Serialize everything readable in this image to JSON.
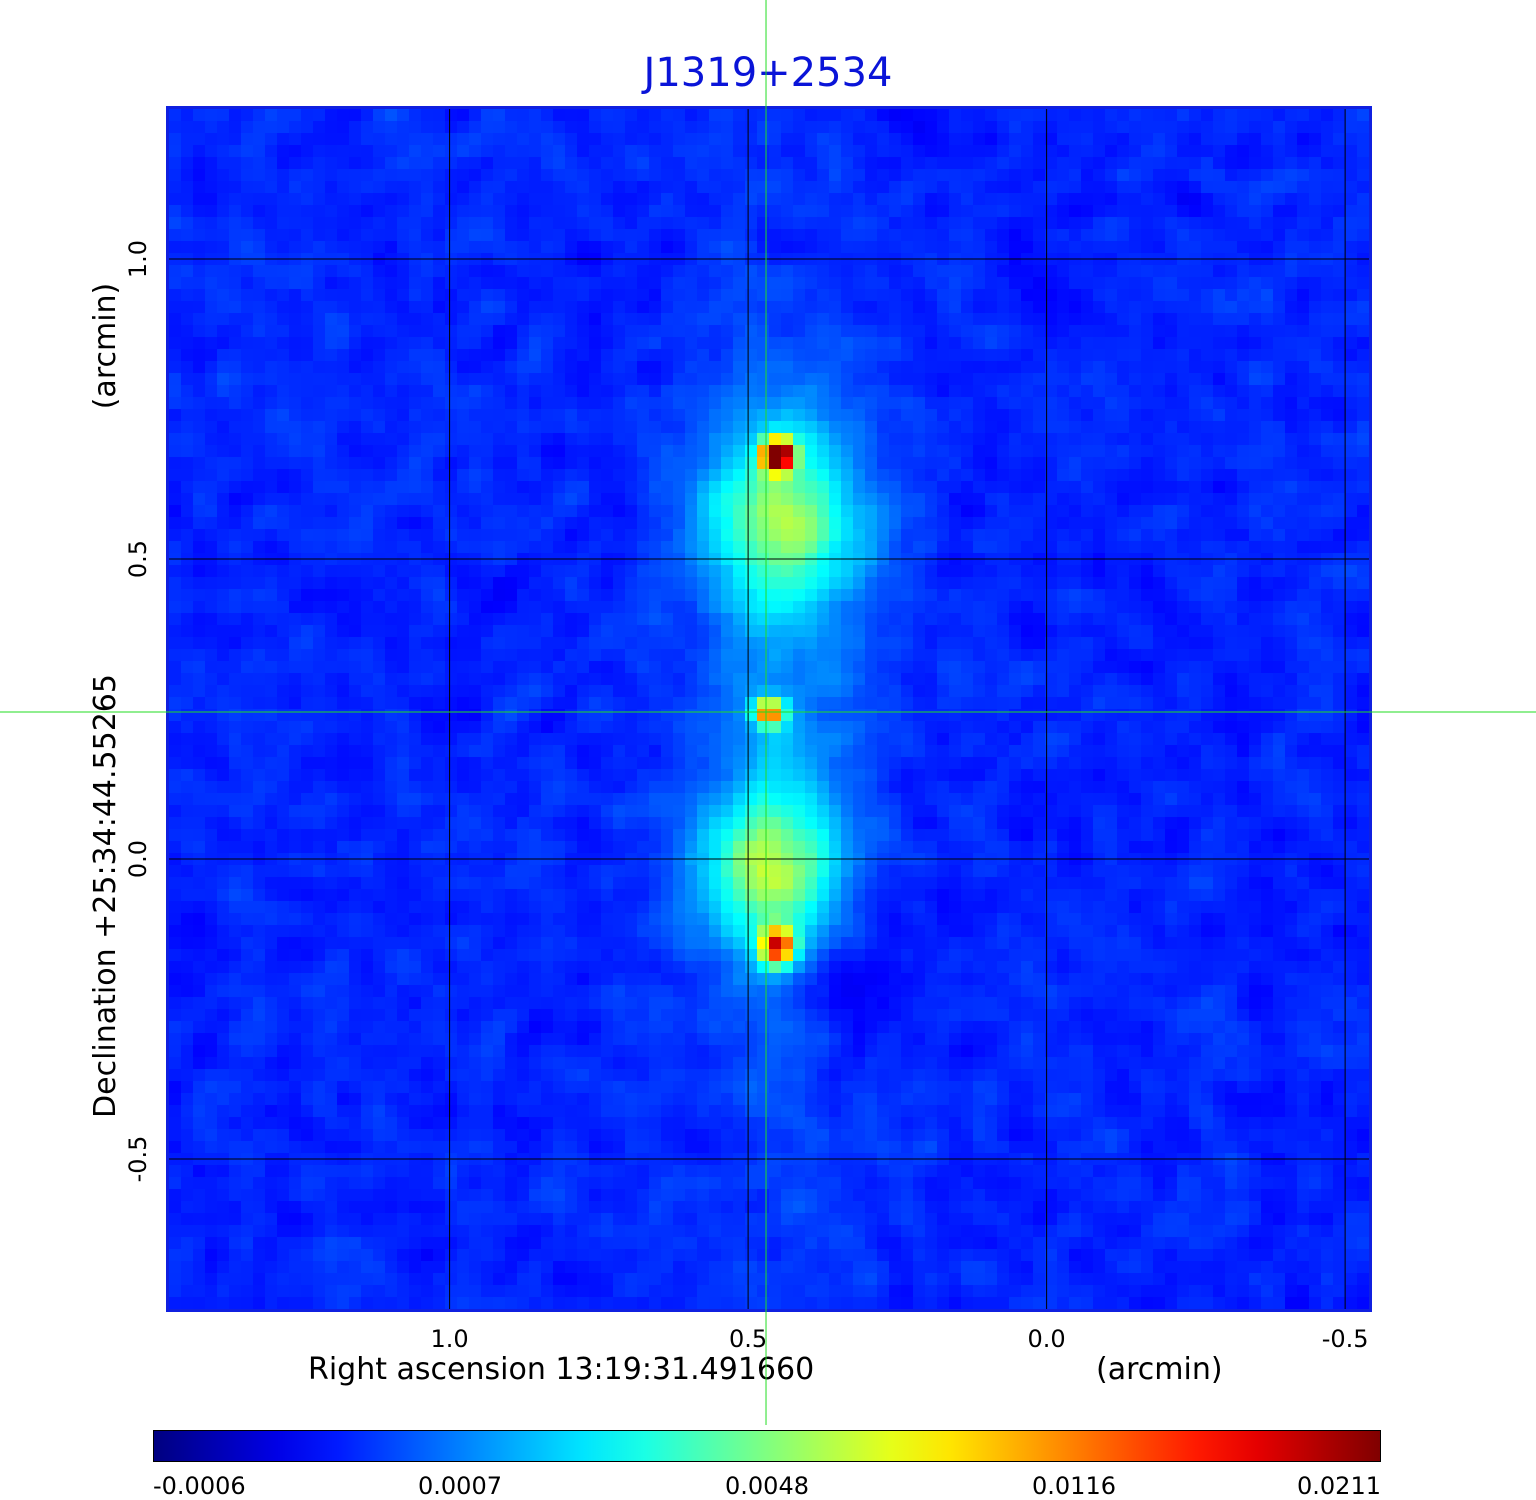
{
  "title": "J1319+2534",
  "x_axis": {
    "label": "Right ascension  13:19:31.491660",
    "unit": "(arcmin)",
    "ticks": [
      "1.0",
      "0.5",
      "0.0",
      "-0.5"
    ],
    "tick_values": [
      1.0,
      0.5,
      0.0,
      -0.5
    ],
    "range": [
      1.47,
      -0.54
    ]
  },
  "y_axis": {
    "label": "Declination  +25:34:44.55265",
    "unit": "(arcmin)",
    "ticks": [
      "1.0",
      "0.5",
      "0.0",
      "-0.5"
    ],
    "tick_values": [
      1.0,
      0.5,
      0.0,
      -0.5
    ],
    "range": [
      -0.75,
      1.25
    ]
  },
  "colorbar": {
    "ticks": [
      "-0.0006",
      "0.0007",
      "0.0048",
      "0.0116",
      "0.0211"
    ],
    "tick_fractions": [
      0.0,
      0.25,
      0.5,
      0.75,
      1.0
    ],
    "colormap": "jet"
  },
  "grid": true,
  "crosshair": {
    "x_arcmin": 0.47,
    "y_arcmin": 0.245,
    "color": "#22dd22"
  },
  "colors": {
    "title": "#0a14d8",
    "frame": "#1020e0",
    "grid": "#000000",
    "crosshair": "#22dd22"
  }
}
